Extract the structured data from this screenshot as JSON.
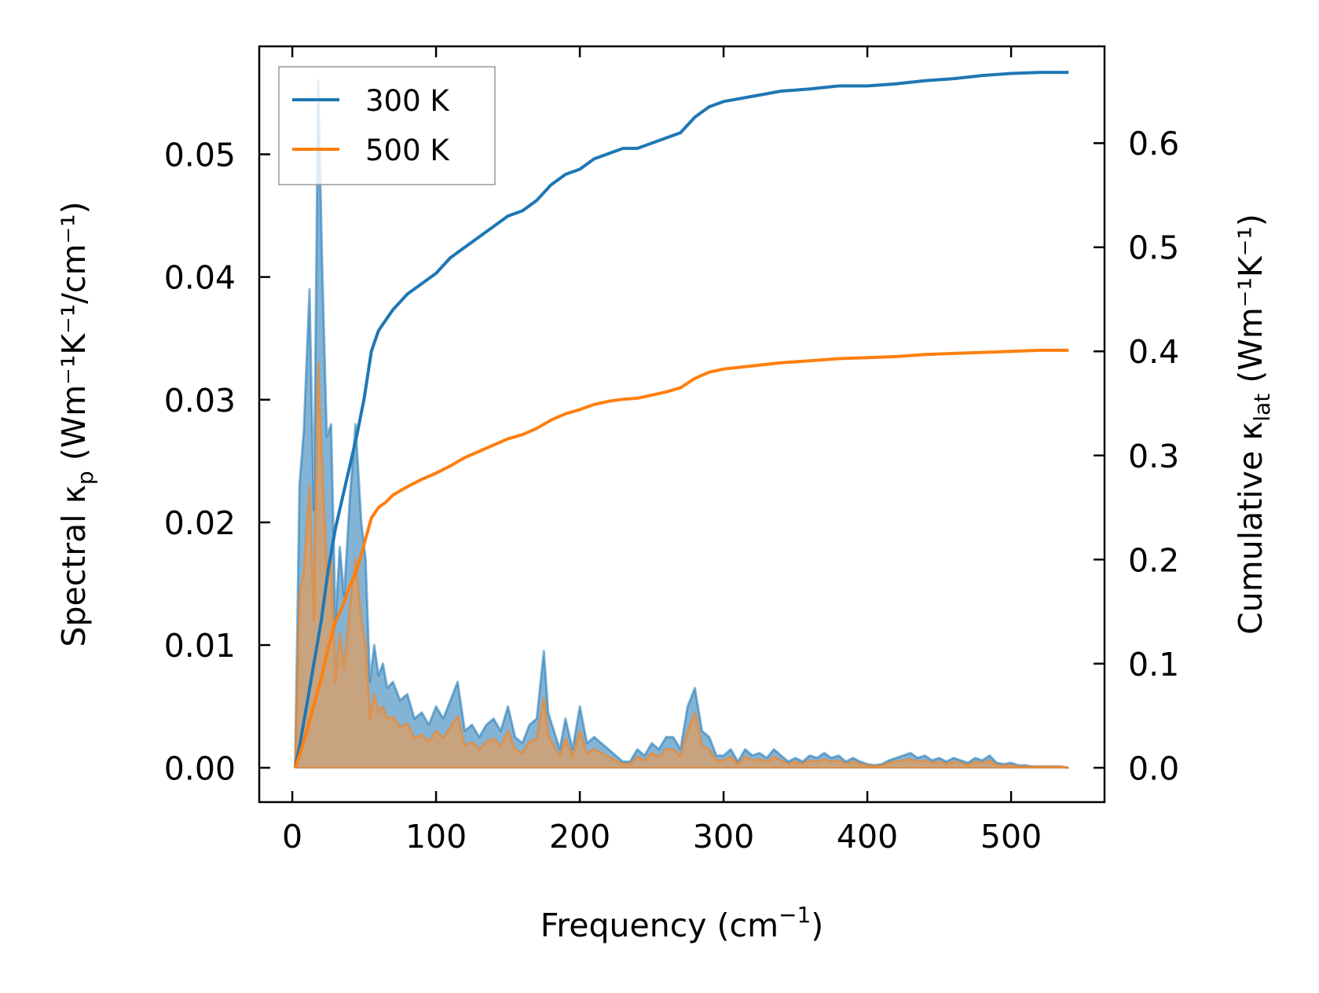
{
  "chart_data": {
    "type": "line",
    "xlabel_main": "Frequency (cm",
    "xlabel_sup": "−1",
    "xlabel_end": ")",
    "xlim": [
      -23,
      565
    ],
    "xticks": [
      "0",
      "100",
      "200",
      "300",
      "400",
      "500"
    ],
    "xtick_values": [
      0,
      100,
      200,
      300,
      400,
      500
    ],
    "y_left": {
      "label_pre": "Spectral κ",
      "label_sub": "p",
      "label_post": " (Wm⁻¹K⁻¹/cm⁻¹)",
      "lim": [
        -0.0028,
        0.0588
      ],
      "ticks": [
        "0.00",
        "0.01",
        "0.02",
        "0.03",
        "0.04",
        "0.05"
      ],
      "tick_values": [
        0,
        0.01,
        0.02,
        0.03,
        0.04,
        0.05
      ]
    },
    "y_right": {
      "label_pre": "Cumulative κ",
      "label_sub": "lat",
      "label_post": " (Wm⁻¹K⁻¹)",
      "lim": [
        -0.033,
        0.693
      ],
      "ticks": [
        "0.0",
        "0.1",
        "0.2",
        "0.3",
        "0.4",
        "0.5",
        "0.6"
      ],
      "tick_values": [
        0,
        0.1,
        0.2,
        0.3,
        0.4,
        0.5,
        0.6
      ]
    },
    "legend": {
      "position": "top-left",
      "entries": [
        "300 K",
        "500 K"
      ]
    },
    "colors": {
      "300K": "#1f77b4",
      "500K": "#ff7f0e",
      "spectral_300K_fill": "#5a9bc8",
      "spectral_500K_fill": "#d4a070"
    },
    "series": [
      {
        "name": "300 K",
        "kind": "spectral",
        "axis": "left",
        "x": [
          2,
          5,
          8,
          12,
          15,
          18,
          21,
          24,
          27,
          30,
          33,
          36,
          40,
          44,
          48,
          51,
          54,
          57,
          60,
          63,
          66,
          70,
          75,
          80,
          85,
          90,
          95,
          100,
          105,
          110,
          115,
          120,
          125,
          130,
          135,
          140,
          145,
          150,
          155,
          160,
          165,
          170,
          175,
          178,
          182,
          186,
          190,
          195,
          200,
          205,
          210,
          215,
          220,
          225,
          230,
          235,
          240,
          245,
          250,
          255,
          260,
          265,
          270,
          275,
          280,
          285,
          290,
          295,
          300,
          305,
          310,
          315,
          320,
          325,
          330,
          335,
          340,
          345,
          350,
          355,
          360,
          365,
          370,
          375,
          380,
          385,
          390,
          395,
          400,
          405,
          410,
          415,
          420,
          425,
          430,
          435,
          440,
          445,
          450,
          455,
          460,
          465,
          470,
          475,
          480,
          485,
          490,
          495,
          500,
          505,
          510,
          515,
          520,
          525,
          530,
          535,
          540
        ],
        "values": [
          0.0,
          0.023,
          0.0275,
          0.039,
          0.021,
          0.056,
          0.04,
          0.027,
          0.028,
          0.012,
          0.018,
          0.014,
          0.022,
          0.028,
          0.02,
          0.017,
          0.007,
          0.01,
          0.0075,
          0.0085,
          0.0065,
          0.007,
          0.0055,
          0.006,
          0.004,
          0.0045,
          0.0035,
          0.005,
          0.004,
          0.0055,
          0.007,
          0.003,
          0.0035,
          0.0025,
          0.0035,
          0.004,
          0.003,
          0.005,
          0.0025,
          0.002,
          0.0035,
          0.004,
          0.0095,
          0.0045,
          0.003,
          0.0015,
          0.004,
          0.0015,
          0.005,
          0.002,
          0.0025,
          0.002,
          0.0015,
          0.001,
          0.0005,
          0.0005,
          0.0015,
          0.001,
          0.002,
          0.0015,
          0.0025,
          0.0025,
          0.0015,
          0.005,
          0.0065,
          0.003,
          0.0025,
          0.001,
          0.001,
          0.0015,
          0.0005,
          0.0015,
          0.001,
          0.0012,
          0.0008,
          0.0015,
          0.001,
          0.0005,
          0.0008,
          0.0005,
          0.001,
          0.0008,
          0.0012,
          0.0008,
          0.001,
          0.0005,
          0.0008,
          0.0005,
          0.0003,
          0.0002,
          0.0003,
          0.0006,
          0.0008,
          0.001,
          0.0012,
          0.0008,
          0.001,
          0.0006,
          0.0008,
          0.0005,
          0.0008,
          0.0006,
          0.0004,
          0.0008,
          0.0006,
          0.001,
          0.0004,
          0.0003,
          0.0004,
          0.0002,
          0.0002,
          0.0001,
          0.0001,
          0.0001,
          0.0001,
          0.0001,
          0.0
        ]
      },
      {
        "name": "500 K",
        "kind": "spectral",
        "axis": "left",
        "x": [
          2,
          5,
          8,
          12,
          15,
          18,
          21,
          24,
          27,
          30,
          33,
          36,
          40,
          44,
          48,
          51,
          54,
          57,
          60,
          63,
          66,
          70,
          75,
          80,
          85,
          90,
          95,
          100,
          105,
          110,
          115,
          120,
          125,
          130,
          135,
          140,
          145,
          150,
          155,
          160,
          165,
          170,
          175,
          178,
          182,
          186,
          190,
          195,
          200,
          205,
          210,
          215,
          220,
          225,
          230,
          235,
          240,
          245,
          250,
          255,
          260,
          265,
          270,
          275,
          280,
          285,
          290,
          295,
          300,
          305,
          310,
          315,
          320,
          325,
          330,
          335,
          340,
          345,
          350,
          355,
          360,
          365,
          370,
          375,
          380,
          385,
          390,
          395,
          400,
          405,
          410,
          415,
          420,
          425,
          430,
          435,
          440,
          445,
          450,
          455,
          460,
          465,
          470,
          475,
          480,
          485,
          490,
          495,
          500,
          505,
          510,
          515,
          520,
          525,
          530,
          535,
          540
        ],
        "values": [
          0.0,
          0.014,
          0.016,
          0.023,
          0.012,
          0.033,
          0.024,
          0.016,
          0.017,
          0.007,
          0.011,
          0.008,
          0.013,
          0.017,
          0.012,
          0.01,
          0.004,
          0.006,
          0.0045,
          0.005,
          0.004,
          0.0042,
          0.0033,
          0.0036,
          0.0024,
          0.0027,
          0.0021,
          0.003,
          0.0024,
          0.0033,
          0.0042,
          0.0018,
          0.0021,
          0.0015,
          0.0021,
          0.0024,
          0.0018,
          0.003,
          0.0015,
          0.0012,
          0.0021,
          0.0024,
          0.0057,
          0.0027,
          0.0018,
          0.0009,
          0.0024,
          0.0009,
          0.003,
          0.0012,
          0.0015,
          0.0012,
          0.0009,
          0.0006,
          0.0003,
          0.0003,
          0.0009,
          0.0006,
          0.0012,
          0.0009,
          0.0015,
          0.0015,
          0.0009,
          0.003,
          0.0045,
          0.0018,
          0.0015,
          0.0006,
          0.0006,
          0.0009,
          0.0003,
          0.0009,
          0.0006,
          0.0007,
          0.0005,
          0.0009,
          0.0006,
          0.0003,
          0.0005,
          0.0003,
          0.0006,
          0.0005,
          0.0007,
          0.0005,
          0.0006,
          0.0003,
          0.0005,
          0.0003,
          0.0002,
          0.0001,
          0.0002,
          0.0004,
          0.0005,
          0.0006,
          0.0007,
          0.0005,
          0.0006,
          0.0004,
          0.0005,
          0.0003,
          0.0005,
          0.0004,
          0.0002,
          0.0005,
          0.0004,
          0.0006,
          0.0002,
          0.0002,
          0.0002,
          0.0001,
          0.0001,
          0.0001,
          0.0001,
          0.0001,
          0.0001,
          0.0001,
          0.0
        ]
      },
      {
        "name": "300 K",
        "kind": "cumulative",
        "axis": "right",
        "x": [
          2,
          5,
          10,
          15,
          20,
          25,
          30,
          35,
          40,
          45,
          50,
          55,
          60,
          65,
          70,
          80,
          90,
          100,
          110,
          120,
          130,
          140,
          150,
          160,
          170,
          180,
          190,
          200,
          210,
          220,
          230,
          240,
          250,
          260,
          270,
          280,
          290,
          300,
          320,
          340,
          360,
          380,
          400,
          420,
          440,
          460,
          480,
          500,
          520,
          540
        ],
        "values": [
          0.0,
          0.02,
          0.06,
          0.1,
          0.14,
          0.19,
          0.23,
          0.26,
          0.29,
          0.32,
          0.355,
          0.4,
          0.42,
          0.43,
          0.44,
          0.455,
          0.465,
          0.475,
          0.49,
          0.5,
          0.51,
          0.52,
          0.53,
          0.535,
          0.545,
          0.56,
          0.57,
          0.575,
          0.585,
          0.59,
          0.595,
          0.595,
          0.6,
          0.605,
          0.61,
          0.625,
          0.635,
          0.64,
          0.645,
          0.65,
          0.652,
          0.655,
          0.655,
          0.657,
          0.66,
          0.662,
          0.665,
          0.667,
          0.668,
          0.668
        ]
      },
      {
        "name": "500 K",
        "kind": "cumulative",
        "axis": "right",
        "x": [
          2,
          5,
          10,
          15,
          20,
          25,
          30,
          35,
          40,
          45,
          50,
          55,
          60,
          65,
          70,
          80,
          90,
          100,
          110,
          120,
          130,
          140,
          150,
          160,
          170,
          180,
          190,
          200,
          210,
          220,
          230,
          240,
          250,
          260,
          270,
          280,
          290,
          300,
          320,
          340,
          360,
          380,
          400,
          420,
          440,
          460,
          480,
          500,
          520,
          540
        ],
        "values": [
          0.0,
          0.012,
          0.035,
          0.06,
          0.085,
          0.115,
          0.14,
          0.155,
          0.175,
          0.19,
          0.215,
          0.24,
          0.25,
          0.255,
          0.262,
          0.27,
          0.277,
          0.283,
          0.29,
          0.298,
          0.304,
          0.31,
          0.316,
          0.32,
          0.326,
          0.334,
          0.34,
          0.344,
          0.349,
          0.352,
          0.354,
          0.355,
          0.358,
          0.361,
          0.365,
          0.374,
          0.38,
          0.383,
          0.386,
          0.389,
          0.391,
          0.393,
          0.394,
          0.395,
          0.397,
          0.398,
          0.399,
          0.4,
          0.401,
          0.401
        ]
      }
    ]
  }
}
